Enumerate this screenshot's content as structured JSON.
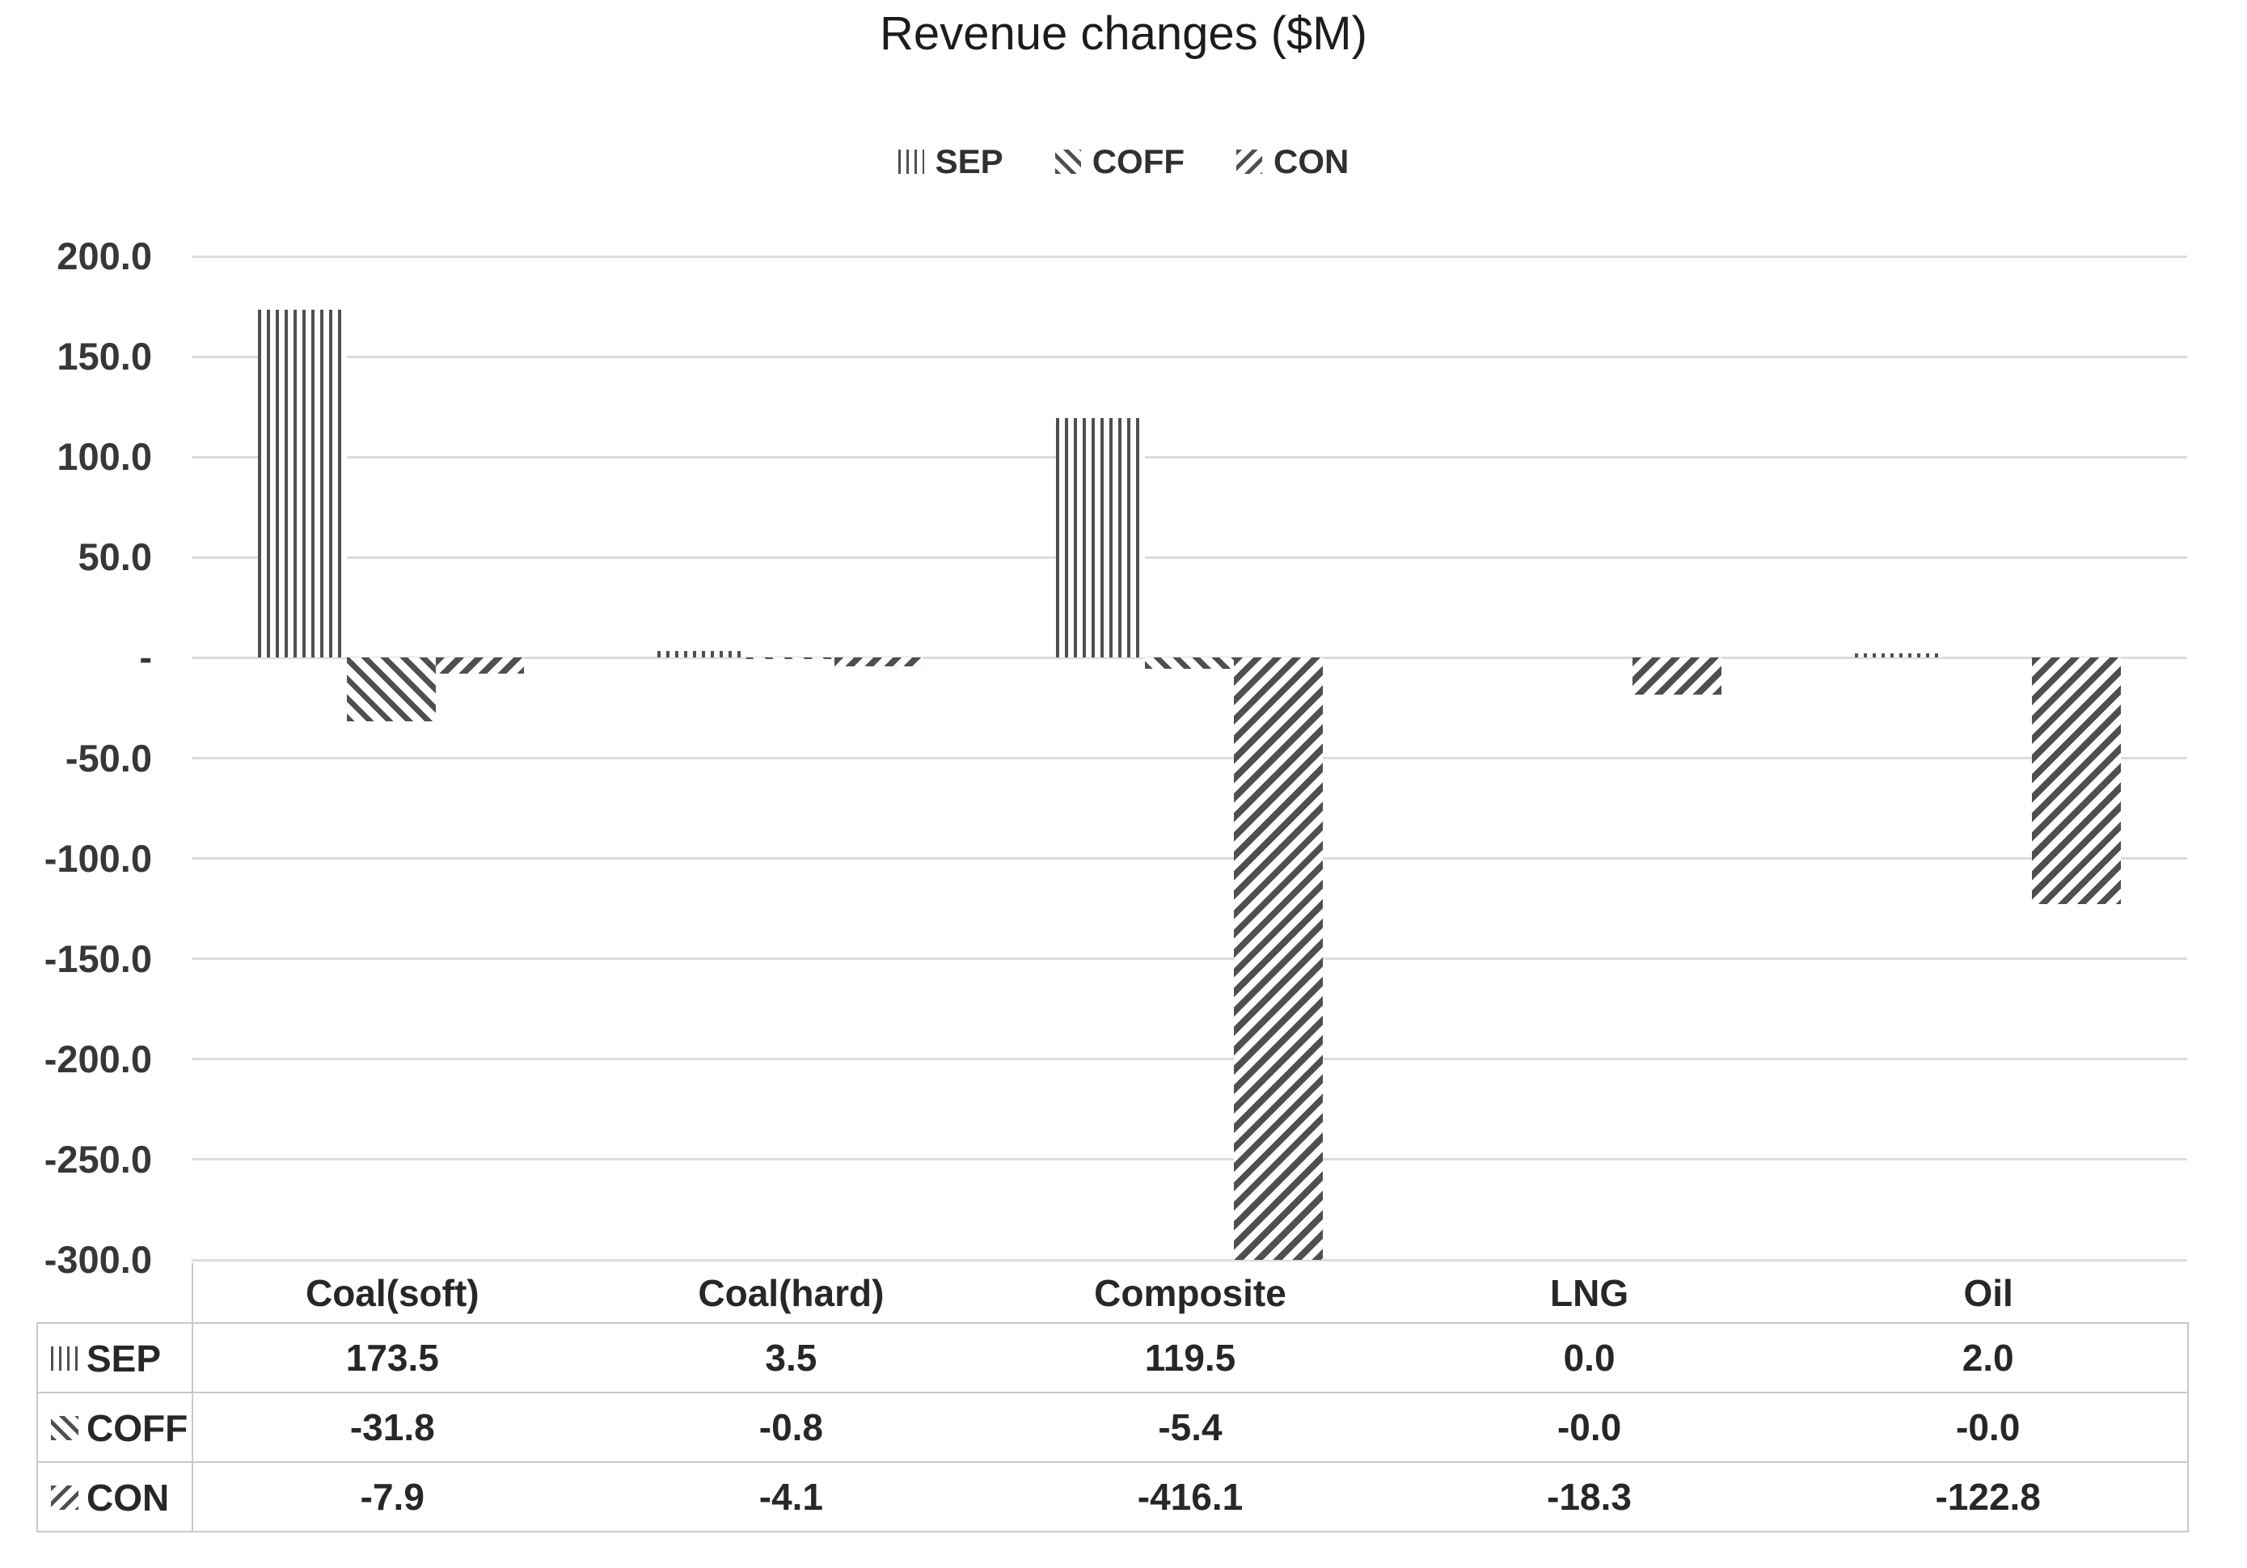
{
  "chart_data": {
    "type": "bar",
    "title": "Revenue changes ($M)",
    "categories": [
      "Coal(soft)",
      "Coal(hard)",
      "Composite",
      "LNG",
      "Oil"
    ],
    "series": [
      {
        "name": "SEP",
        "pattern": "vertical-stripes",
        "values": [
          173.5,
          3.5,
          119.5,
          0.0,
          2.0
        ],
        "display": [
          "173.5",
          "3.5",
          "119.5",
          "0.0",
          "2.0"
        ]
      },
      {
        "name": "COFF",
        "pattern": "diagonal-forward",
        "values": [
          -31.8,
          -0.8,
          -5.4,
          -0.0,
          -0.0
        ],
        "display": [
          "-31.8",
          "-0.8",
          "-5.4",
          "-0.0",
          "-0.0"
        ]
      },
      {
        "name": "CON",
        "pattern": "diagonal-backward",
        "values": [
          -7.9,
          -4.1,
          -416.1,
          -18.3,
          -122.8
        ],
        "display": [
          "-7.9",
          "-4.1",
          "-416.1",
          "-18.3",
          "-122.8"
        ]
      }
    ],
    "y_axis": {
      "min": -300,
      "max": 200,
      "step": 50,
      "tick_labels": [
        "200.0",
        "150.0",
        "100.0",
        "50.0",
        "-",
        "-50.0",
        "-100.0",
        "-150.0",
        "-200.0",
        "-250.0",
        "-300.0"
      ]
    },
    "xlabel": "",
    "ylabel": "",
    "grid": true,
    "legend_position": "top",
    "data_table_shown": true,
    "notes": "Composite CON bar (-416.1) is clipped at the axis minimum of -300",
    "colors": {
      "pattern_ink": "#4f4f4f",
      "gridline": "#dcdcdc",
      "table_border": "#c9c9c9",
      "text": "#262626"
    }
  }
}
